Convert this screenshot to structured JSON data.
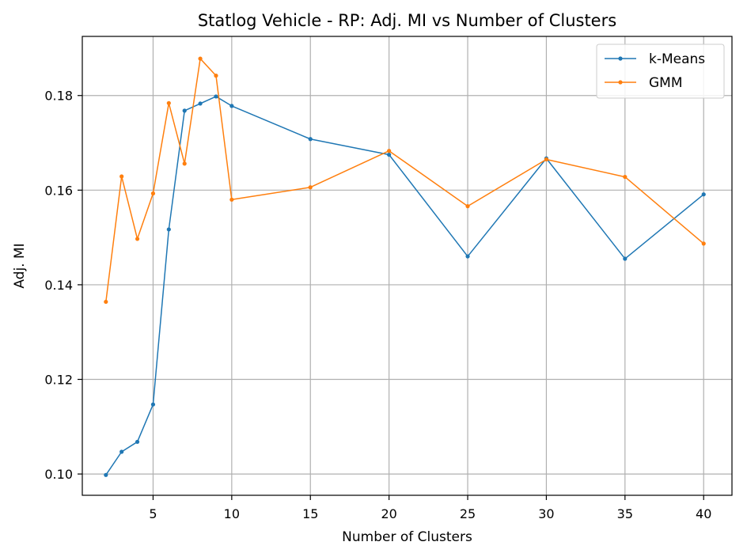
{
  "chart_data": {
    "type": "line",
    "title": "Statlog Vehicle - RP: Adj. MI vs Number of Clusters",
    "xlabel": "Number of Clusters",
    "ylabel": "Adj. MI",
    "xlim": [
      0.5,
      41.8
    ],
    "ylim": [
      0.0955,
      0.1925
    ],
    "x_ticks": [
      5,
      10,
      15,
      20,
      25,
      30,
      35,
      40
    ],
    "y_ticks": [
      0.1,
      0.12,
      0.14,
      0.16,
      0.18
    ],
    "y_tick_labels": [
      "0.10",
      "0.12",
      "0.14",
      "0.16",
      "0.18"
    ],
    "grid": true,
    "legend_position": "top-right",
    "x": [
      2,
      3,
      4,
      5,
      6,
      7,
      8,
      9,
      10,
      15,
      20,
      25,
      30,
      35,
      40
    ],
    "series": [
      {
        "name": "k-Means",
        "color": "#1f77b4",
        "values": [
          0.0998,
          0.1047,
          0.1068,
          0.1147,
          0.1517,
          0.1768,
          0.1783,
          0.1798,
          0.1778,
          0.1708,
          0.1675,
          0.146,
          0.1667,
          0.1455,
          0.1591
        ]
      },
      {
        "name": "GMM",
        "color": "#ff7f0e",
        "values": [
          0.1364,
          0.1629,
          0.1497,
          0.1593,
          0.1784,
          0.1656,
          0.1878,
          0.1842,
          0.158,
          0.1606,
          0.1683,
          0.1566,
          0.1665,
          0.1628,
          0.1487
        ]
      }
    ]
  }
}
